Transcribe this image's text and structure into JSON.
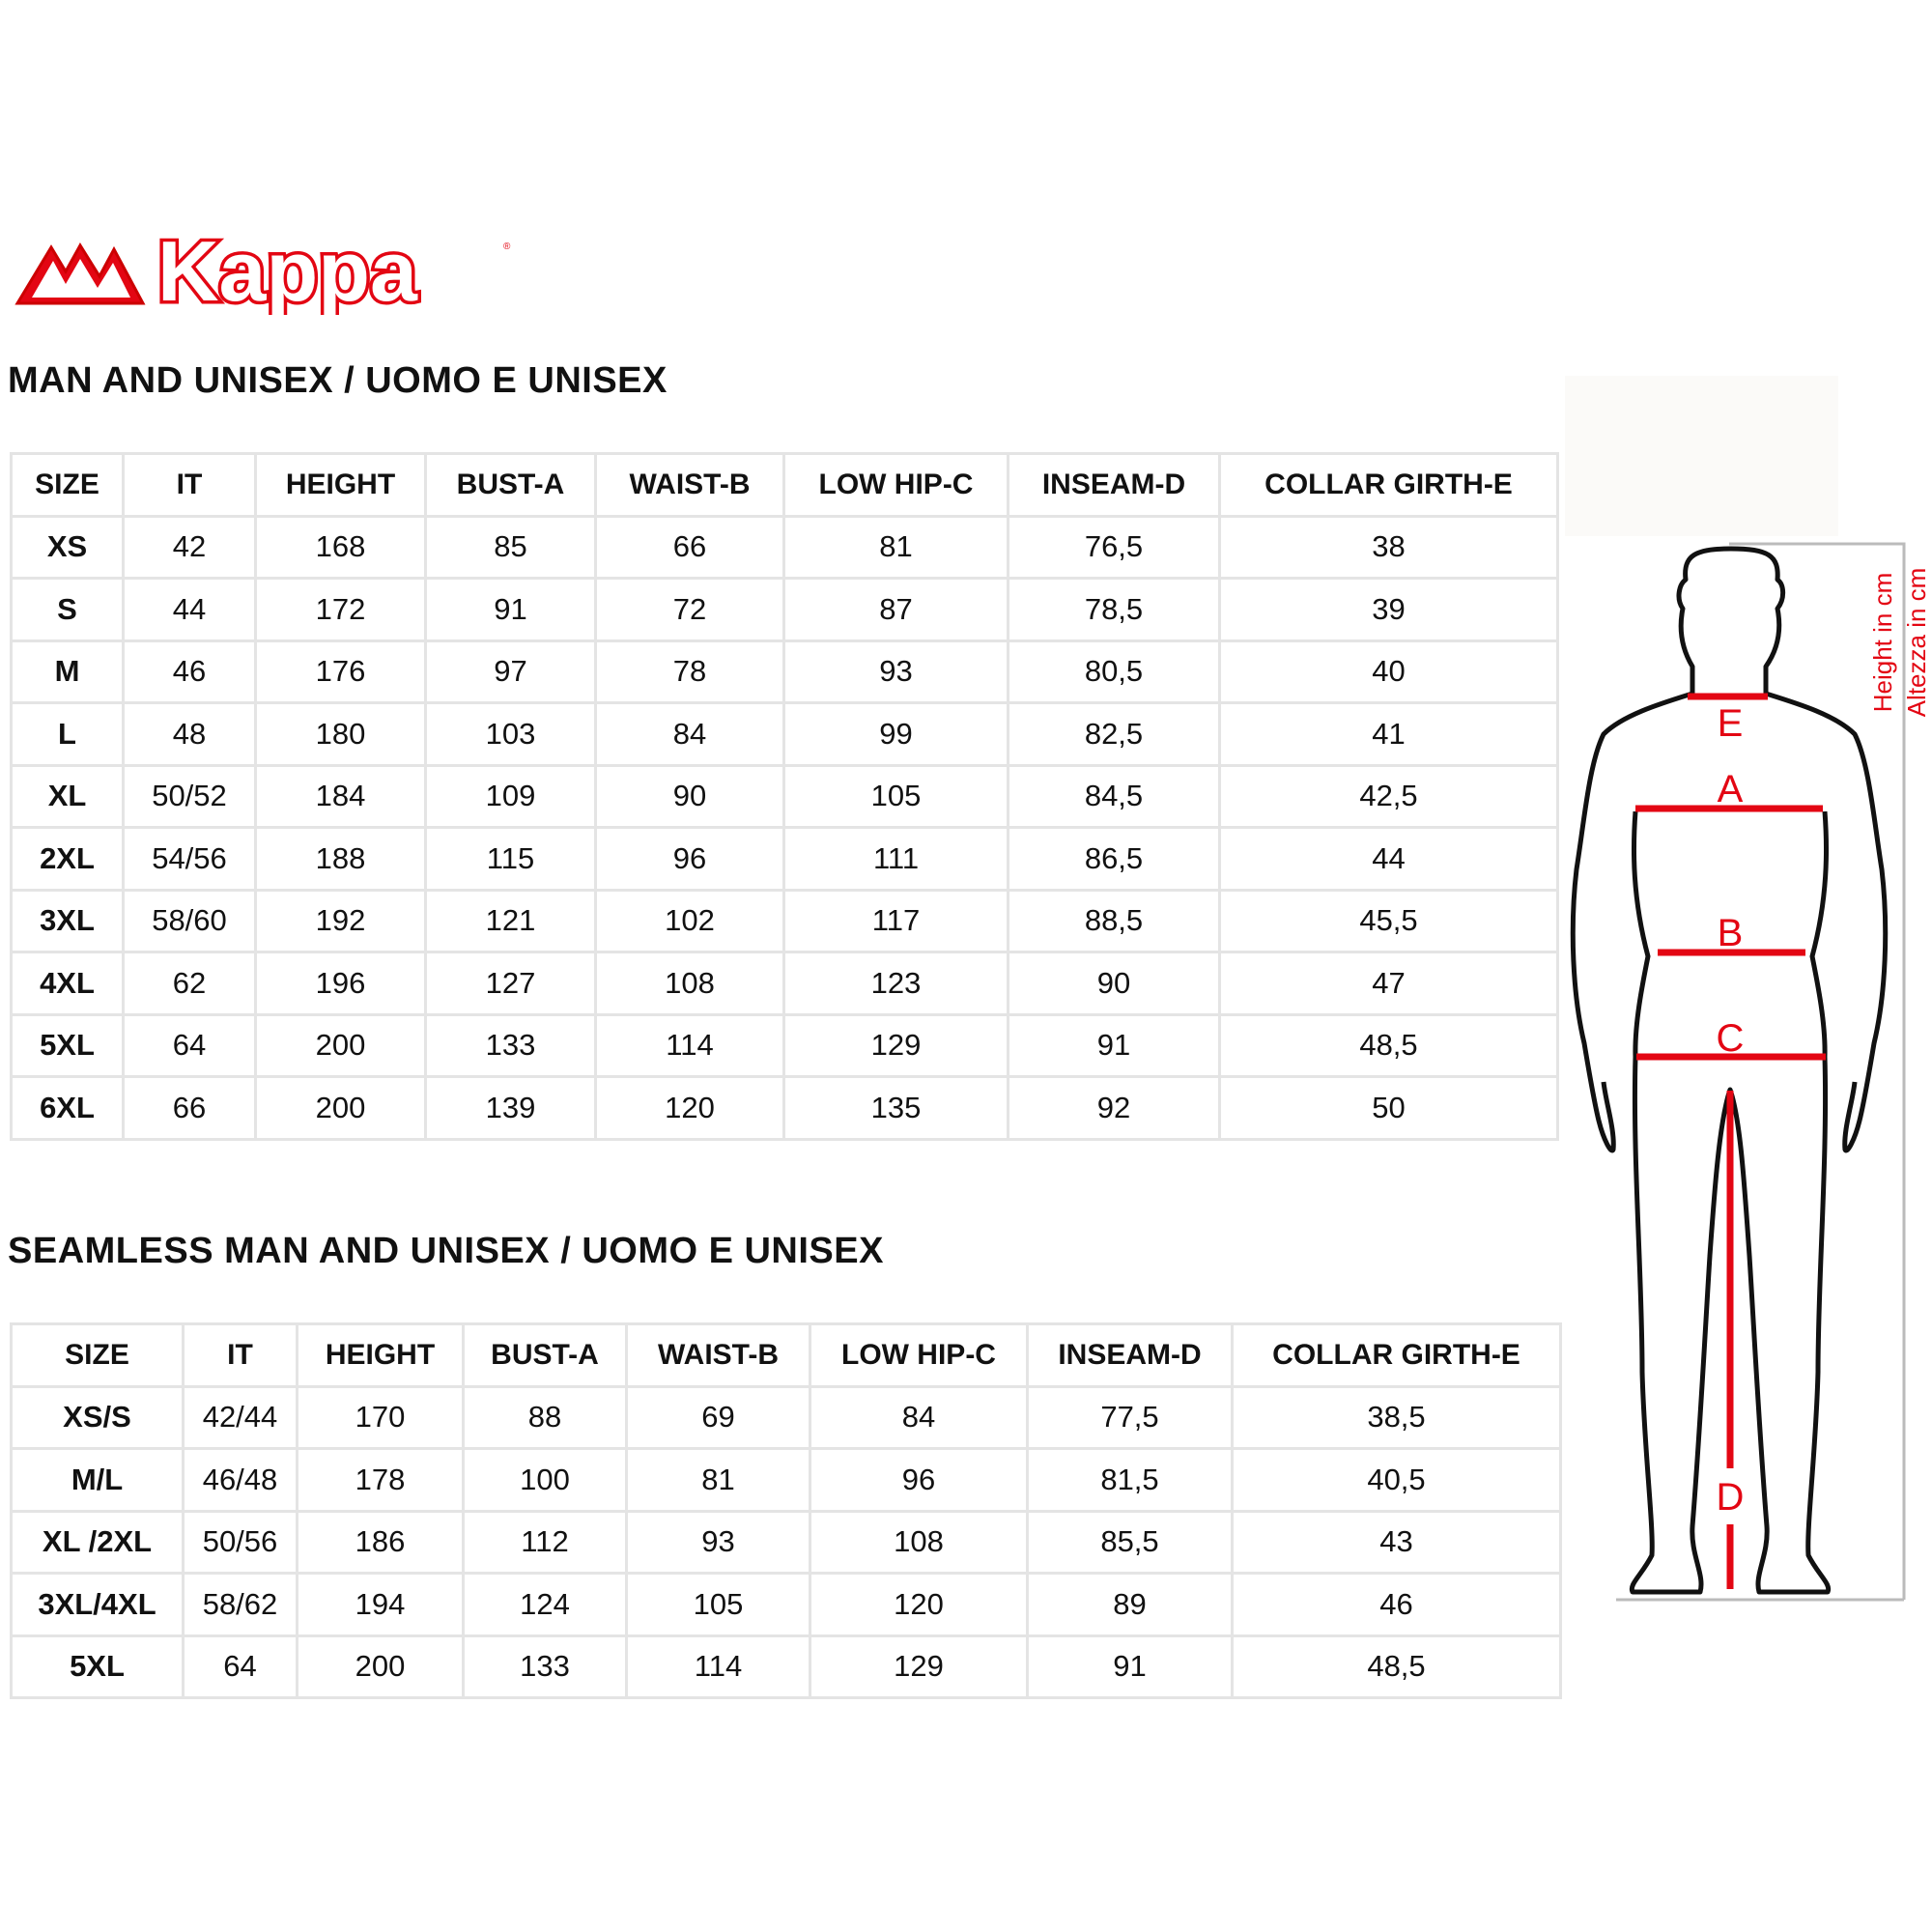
{
  "brand": {
    "logo_text": "Kappa",
    "color": "#e30613"
  },
  "section1": {
    "title": "MAN AND UNISEX / UOMO E UNISEX",
    "headers": [
      "SIZE",
      "IT",
      "HEIGHT",
      "BUST-A",
      "WAIST-B",
      "LOW HIP-C",
      "INSEAM-D",
      "COLLAR GIRTH-E"
    ],
    "rows": [
      [
        "XS",
        "42",
        "168",
        "85",
        "66",
        "81",
        "76,5",
        "38"
      ],
      [
        "S",
        "44",
        "172",
        "91",
        "72",
        "87",
        "78,5",
        "39"
      ],
      [
        "M",
        "46",
        "176",
        "97",
        "78",
        "93",
        "80,5",
        "40"
      ],
      [
        "L",
        "48",
        "180",
        "103",
        "84",
        "99",
        "82,5",
        "41"
      ],
      [
        "XL",
        "50/52",
        "184",
        "109",
        "90",
        "105",
        "84,5",
        "42,5"
      ],
      [
        "2XL",
        "54/56",
        "188",
        "115",
        "96",
        "111",
        "86,5",
        "44"
      ],
      [
        "3XL",
        "58/60",
        "192",
        "121",
        "102",
        "117",
        "88,5",
        "45,5"
      ],
      [
        "4XL",
        "62",
        "196",
        "127",
        "108",
        "123",
        "90",
        "47"
      ],
      [
        "5XL",
        "64",
        "200",
        "133",
        "114",
        "129",
        "91",
        "48,5"
      ],
      [
        "6XL",
        "66",
        "200",
        "139",
        "120",
        "135",
        "92",
        "50"
      ]
    ]
  },
  "section2": {
    "title": "SEAMLESS MAN AND UNISEX / UOMO E UNISEX",
    "headers": [
      "SIZE",
      "IT",
      "HEIGHT",
      "BUST-A",
      "WAIST-B",
      "LOW HIP-C",
      "INSEAM-D",
      "COLLAR GIRTH-E"
    ],
    "rows": [
      [
        "XS/S",
        "42/44",
        "170",
        "88",
        "69",
        "84",
        "77,5",
        "38,5"
      ],
      [
        "M/L",
        "46/48",
        "178",
        "100",
        "81",
        "96",
        "81,5",
        "40,5"
      ],
      [
        "XL /2XL",
        "50/56",
        "186",
        "112",
        "93",
        "108",
        "85,5",
        "43"
      ],
      [
        "3XL/4XL",
        "58/62",
        "194",
        "124",
        "105",
        "120",
        "89",
        "46"
      ],
      [
        "5XL",
        "64",
        "200",
        "133",
        "114",
        "129",
        "91",
        "48,5"
      ]
    ]
  },
  "figure": {
    "labels": {
      "a": "A",
      "b": "B",
      "c": "C",
      "d": "D",
      "e": "E"
    },
    "height_en": "Height in cm",
    "height_it": "Altezza in cm",
    "accent": "#e30613"
  }
}
